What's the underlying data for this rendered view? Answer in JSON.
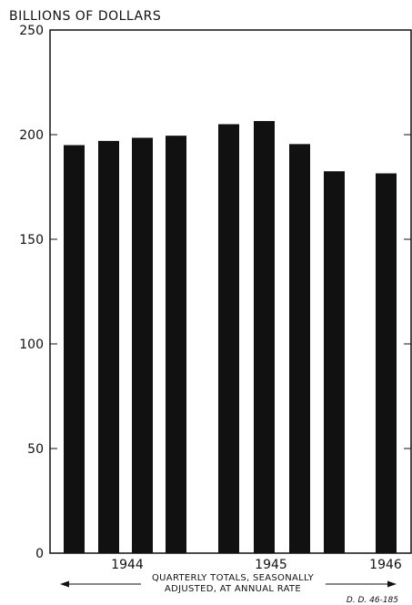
{
  "chart_data": {
    "type": "bar",
    "title": "BILLIONS OF DOLLARS",
    "ylim": [
      0,
      250
    ],
    "yticks": [
      0,
      50,
      100,
      150,
      200,
      250
    ],
    "ytick_labels": [
      "0",
      "50",
      "100",
      "150",
      "200",
      "250"
    ],
    "series": [
      {
        "values": [
          195,
          197,
          198.5,
          199.5,
          205,
          206.5,
          195.5,
          182.5,
          181.5
        ],
        "color": "#111111"
      }
    ],
    "year_labels": [
      "1944",
      "1945",
      "1946"
    ],
    "note_line1": "QUARTERLY TOTALS, SEASONALLY",
    "note_line2": "ADJUSTED, AT ANNUAL RATE",
    "code": "D. D. 46-185",
    "grid": false
  }
}
